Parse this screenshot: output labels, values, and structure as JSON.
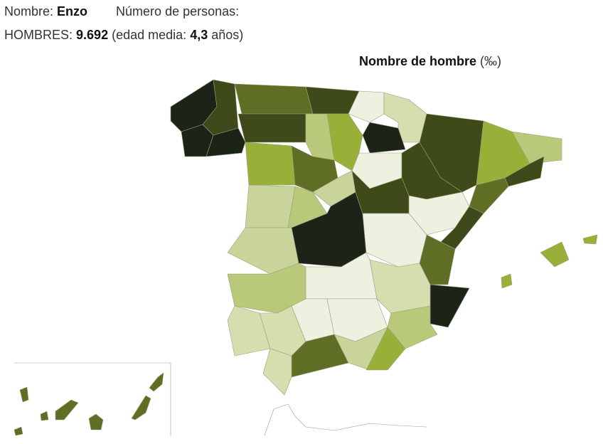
{
  "header": {
    "name_label": "Nombre:",
    "name": "Enzo",
    "count_label": "Número de personas:",
    "men_label": "HOMBRES:",
    "men_count": "9.692",
    "age_label": "(edad media:",
    "age": "4,3",
    "age_unit": "años)"
  },
  "map": {
    "title": "Nombre de hombre",
    "unit": "(‰)"
  }
}
